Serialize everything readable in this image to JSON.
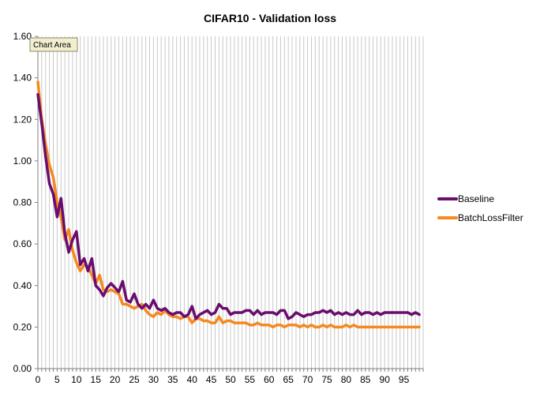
{
  "tooltip": "Chart Area",
  "chart_data": {
    "type": "line",
    "title": "CIFAR10 - Validation loss",
    "xlabel": "",
    "ylabel": "",
    "xlim": [
      0,
      100
    ],
    "ylim": [
      0,
      1.6
    ],
    "x_ticks": [
      0,
      5,
      10,
      15,
      20,
      25,
      30,
      35,
      40,
      45,
      50,
      55,
      60,
      65,
      70,
      75,
      80,
      85,
      90,
      95
    ],
    "y_ticks": [
      "0.00",
      "0.20",
      "0.40",
      "0.60",
      "0.80",
      "1.00",
      "1.20",
      "1.40",
      "1.60"
    ],
    "grid": "vertical",
    "legend_position": "right",
    "series": [
      {
        "name": "Baseline",
        "color": "#6a0d6e",
        "values": [
          1.32,
          1.18,
          1.02,
          0.89,
          0.84,
          0.73,
          0.82,
          0.65,
          0.56,
          0.62,
          0.66,
          0.5,
          0.53,
          0.47,
          0.53,
          0.4,
          0.38,
          0.35,
          0.39,
          0.41,
          0.39,
          0.37,
          0.42,
          0.33,
          0.32,
          0.36,
          0.31,
          0.29,
          0.31,
          0.29,
          0.33,
          0.29,
          0.28,
          0.29,
          0.27,
          0.26,
          0.27,
          0.27,
          0.25,
          0.26,
          0.3,
          0.24,
          0.26,
          0.27,
          0.28,
          0.26,
          0.27,
          0.31,
          0.29,
          0.29,
          0.26,
          0.27,
          0.27,
          0.27,
          0.28,
          0.28,
          0.26,
          0.28,
          0.26,
          0.27,
          0.27,
          0.27,
          0.26,
          0.28,
          0.28,
          0.24,
          0.25,
          0.27,
          0.26,
          0.25,
          0.26,
          0.26,
          0.27,
          0.27,
          0.28,
          0.27,
          0.28,
          0.26,
          0.27,
          0.26,
          0.27,
          0.26,
          0.26,
          0.28,
          0.26,
          0.27,
          0.27,
          0.26,
          0.27,
          0.26,
          0.27,
          0.27,
          0.27,
          0.27,
          0.27,
          0.27,
          0.27,
          0.26,
          0.27,
          0.26
        ]
      },
      {
        "name": "BatchLossFilter",
        "color": "#f5891f",
        "values": [
          1.38,
          1.2,
          1.08,
          0.98,
          0.92,
          0.8,
          0.73,
          0.62,
          0.67,
          0.57,
          0.51,
          0.47,
          0.5,
          0.49,
          0.45,
          0.41,
          0.45,
          0.38,
          0.37,
          0.38,
          0.37,
          0.36,
          0.31,
          0.31,
          0.3,
          0.29,
          0.3,
          0.31,
          0.28,
          0.26,
          0.25,
          0.27,
          0.26,
          0.28,
          0.26,
          0.25,
          0.25,
          0.24,
          0.25,
          0.25,
          0.22,
          0.24,
          0.24,
          0.23,
          0.23,
          0.22,
          0.22,
          0.25,
          0.22,
          0.23,
          0.23,
          0.22,
          0.22,
          0.22,
          0.22,
          0.21,
          0.21,
          0.22,
          0.21,
          0.21,
          0.21,
          0.2,
          0.21,
          0.21,
          0.2,
          0.21,
          0.21,
          0.21,
          0.2,
          0.21,
          0.2,
          0.21,
          0.2,
          0.2,
          0.21,
          0.2,
          0.21,
          0.2,
          0.2,
          0.2,
          0.21,
          0.2,
          0.21,
          0.2,
          0.2,
          0.2,
          0.2,
          0.2,
          0.2,
          0.2,
          0.2,
          0.2,
          0.2,
          0.2,
          0.2,
          0.2,
          0.2,
          0.2,
          0.2,
          0.2
        ]
      }
    ]
  }
}
